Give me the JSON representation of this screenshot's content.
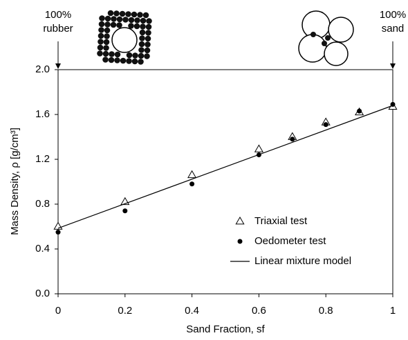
{
  "chart_data": {
    "type": "scatter",
    "x_label": "Sand Fraction, sf",
    "y_label": "Mass Density, ρ [g/cm³]",
    "annotations": [
      [
        "100%",
        "rubber"
      ],
      [
        "100%",
        "sand"
      ]
    ],
    "xlim": [
      0,
      1
    ],
    "ylim": [
      0,
      2
    ],
    "xticks": [
      0,
      0.2,
      0.4,
      0.6,
      0.8,
      1
    ],
    "yticks": [
      {
        "value": 0,
        "label": "0.0"
      },
      0.4,
      0.8,
      1.2,
      1.6,
      {
        "value": 2,
        "label": "2.0"
      }
    ],
    "grid": false,
    "legend": "lower-right",
    "series": [
      {
        "name": "Triaxial test",
        "marker": "triangle",
        "color": "#000000",
        "x": [
          0,
          0.2,
          0.4,
          0.6,
          0.7,
          0.8,
          0.9,
          1
        ],
        "values": [
          0.6,
          0.82,
          1.06,
          1.29,
          1.4,
          1.53,
          1.62,
          1.67
        ]
      },
      {
        "name": "Oedometer test",
        "marker": "circle",
        "color": "#000000",
        "x": [
          0,
          0.2,
          0.4,
          0.6,
          0.7,
          0.8,
          0.9,
          1
        ],
        "values": [
          0.55,
          0.74,
          0.98,
          1.24,
          1.38,
          1.51,
          1.63,
          1.69
        ]
      },
      {
        "name": "Linear mixture model",
        "marker": "line",
        "color": "#000000",
        "x": [
          0,
          1
        ],
        "values": [
          0.585,
          1.68
        ]
      }
    ]
  }
}
